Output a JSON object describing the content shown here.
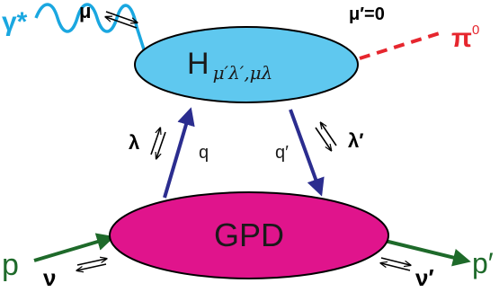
{
  "diagram": {
    "upper_blob_label": "H",
    "upper_blob_subscript": "μ′λ′,μλ",
    "lower_blob_label": "GPD",
    "photon_label": "γ*",
    "photon_helicity": "μ",
    "pion_helicity_constraint": "μ′=0",
    "pion_label": "π",
    "pion_charge": "0",
    "incoming_proton_label": "p",
    "incoming_proton_helicity": "ν",
    "outgoing_proton_label": "p′",
    "outgoing_proton_helicity": "ν′",
    "left_parton_helicity": "λ",
    "left_parton_momentum": "q",
    "right_parton_momentum": "q′",
    "right_parton_helicity": "λ′"
  },
  "colors": {
    "photon": "#1aa7e0",
    "upper_blob": "#5fc8ef",
    "lower_blob": "#e0148c",
    "pion": "#e6262e",
    "proton": "#1e6a2a",
    "parton": "#2b2d8f",
    "text": "#000000"
  }
}
